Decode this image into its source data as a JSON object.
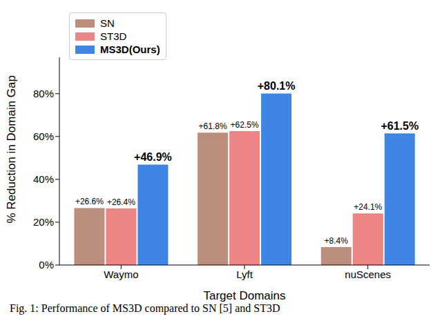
{
  "chart_data": {
    "type": "bar",
    "x_label": "Target Domains",
    "y_label": "% Reduction in Domain Gap",
    "caption": "Fig. 1: Performance of MS3D compared to SN [5] and ST3D",
    "categories": [
      "Waymo",
      "Lyft",
      "nuScenes"
    ],
    "series": [
      {
        "name": "SN",
        "color": "#bc8e7e",
        "values": [
          26.6,
          61.8,
          8.4
        ],
        "value_labels": [
          "+26.6%",
          "+61.8%",
          "+8.4%"
        ]
      },
      {
        "name": "ST3D",
        "color": "#ec8583",
        "values": [
          26.4,
          62.5,
          24.1
        ],
        "value_labels": [
          "+26.4%",
          "+62.5%",
          "+24.1%"
        ]
      },
      {
        "name": "MS3D(Ours)",
        "color": "#3f86e4",
        "values": [
          46.9,
          80.1,
          61.5
        ],
        "value_labels": [
          "+46.9%",
          "+80.1%",
          "+61.5%"
        ]
      }
    ],
    "ylim": [
      0,
      97
    ],
    "yticks": [
      {
        "value": 0,
        "label": "0%"
      },
      {
        "value": 20,
        "label": "20%"
      },
      {
        "value": 40,
        "label": "40%"
      },
      {
        "value": 60,
        "label": "60%"
      },
      {
        "value": 80,
        "label": "80%"
      }
    ],
    "legend": "upper left",
    "data_labels": true
  }
}
